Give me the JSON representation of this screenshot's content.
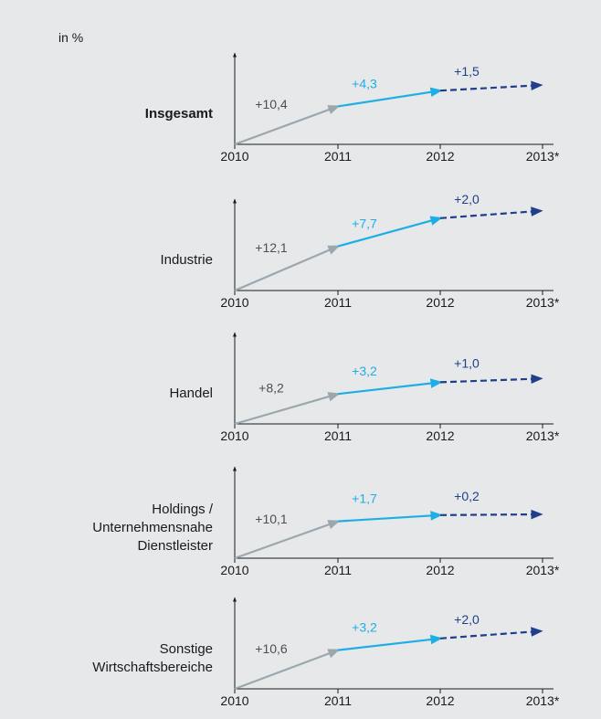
{
  "chart_data": {
    "type": "line",
    "unit_label": "in %",
    "x": [
      "2010",
      "2011",
      "2012",
      "2013*"
    ],
    "series_colors": [
      "#9aa7ae",
      "#1eaee6",
      "#1f3f8c"
    ],
    "panels": [
      {
        "name_lines": [
          "Insgesamt"
        ],
        "bold": true,
        "values": [
          10.4,
          4.3,
          1.5
        ],
        "labels": [
          "+10,4",
          "+4,3",
          "+1,5"
        ]
      },
      {
        "name_lines": [
          "Industrie"
        ],
        "bold": false,
        "values": [
          12.1,
          7.7,
          2.0
        ],
        "labels": [
          "+12,1",
          "+7,7",
          "+2,0"
        ]
      },
      {
        "name_lines": [
          "Handel"
        ],
        "bold": false,
        "values": [
          8.2,
          3.2,
          1.0
        ],
        "labels": [
          "+8,2",
          "+3,2",
          "+1,0"
        ]
      },
      {
        "name_lines": [
          "Holdings /",
          "Unternehmensnahe",
          "Dienstleister"
        ],
        "bold": false,
        "values": [
          10.1,
          1.7,
          0.2
        ],
        "labels": [
          "+10,1",
          "+1,7",
          "+0,2"
        ]
      },
      {
        "name_lines": [
          "Sonstige",
          "Wirtschaftsbereiche"
        ],
        "bold": false,
        "values": [
          10.6,
          3.2,
          2.0
        ],
        "labels": [
          "+10,6",
          "+3,2",
          "+2,0"
        ]
      }
    ]
  }
}
